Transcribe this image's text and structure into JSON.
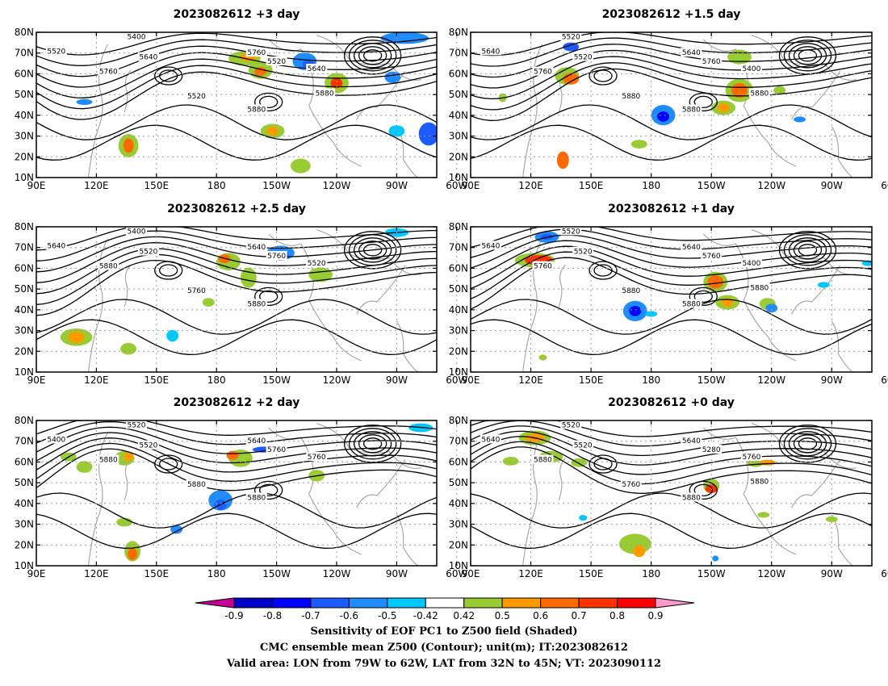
{
  "chart_data": {
    "type": "heatmap",
    "panels": [
      {
        "title": "2023082612 +3 day",
        "contour_labels": [
          "5400",
          "5520",
          "5640",
          "5760",
          "5520",
          "5640",
          "5760",
          "5520",
          "5880",
          "5880"
        ]
      },
      {
        "title": "2023082612 +1.5 day",
        "contour_labels": [
          "5520",
          "5640",
          "5520",
          "5640",
          "5760",
          "5400",
          "5760",
          "5880",
          "5880",
          "5880"
        ]
      },
      {
        "title": "2023082612 +2.5 day",
        "contour_labels": [
          "5400",
          "5640",
          "5520",
          "5640",
          "5760",
          "5520",
          "5880",
          "5760",
          "5880"
        ]
      },
      {
        "title": "2023082612 +1 day",
        "contour_labels": [
          "5520",
          "5640",
          "5520",
          "5640",
          "5760",
          "5400",
          "5760",
          "5880",
          "5880",
          "5880"
        ]
      },
      {
        "title": "2023082612 +2 day",
        "contour_labels": [
          "5520",
          "5400",
          "5520",
          "5640",
          "5760",
          "5760",
          "5880",
          "5880",
          "5880"
        ]
      },
      {
        "title": "2023082612 +0 day",
        "contour_labels": [
          "5520",
          "5640",
          "5520",
          "5640",
          "5280",
          "5760",
          "5880",
          "5760",
          "5880",
          "5880"
        ]
      }
    ],
    "x_ticks": [
      "90E",
      "120E",
      "150E",
      "180",
      "150W",
      "120W",
      "90W",
      "60W"
    ],
    "y_ticks": [
      "80N",
      "70N",
      "60N",
      "50N",
      "40N",
      "30N",
      "20N",
      "10N"
    ],
    "xlim": [
      90,
      290
    ],
    "ylim": [
      10,
      80
    ],
    "colorbar": {
      "labels": [
        "-0.9",
        "-0.8",
        "-0.7",
        "-0.6",
        "-0.5",
        "-0.42",
        "0.42",
        "0.5",
        "0.6",
        "0.7",
        "0.8",
        "0.9"
      ],
      "colors": [
        "#c80098",
        "#0000c8",
        "#0000ff",
        "#1a5cff",
        "#1e8cff",
        "#00c8ff",
        "#ffffff",
        "#99cc33",
        "#ff9900",
        "#ff6a00",
        "#ff3300",
        "#ff0000",
        "#ff99cc"
      ]
    },
    "captions": [
      "Sensitivity of EOF PC1 to Z500 field (Shaded)",
      "CMC ensemble mean Z500 (Contour); unit(m); IT:2023082612",
      "Valid area: LON from 79W to 62W, LAT from 32N to 45N; VT: 2023090112"
    ]
  }
}
